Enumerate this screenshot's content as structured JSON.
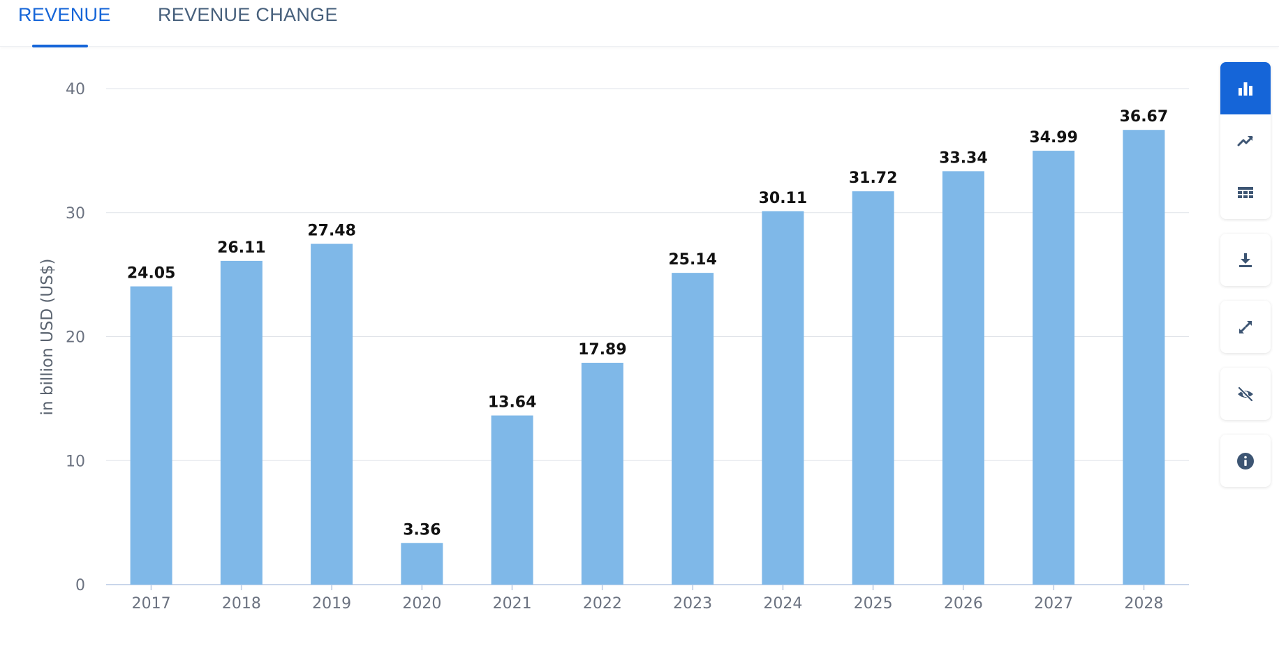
{
  "tabs": [
    {
      "label": "REVENUE",
      "active": true
    },
    {
      "label": "REVENUE CHANGE",
      "active": false
    }
  ],
  "toolbar": {
    "buttons": [
      {
        "icon": "bar-chart-icon",
        "active": true
      },
      {
        "icon": "line-chart-icon",
        "active": false
      },
      {
        "icon": "table-icon",
        "active": false
      },
      {
        "icon": "download-icon",
        "active": false
      },
      {
        "icon": "fullscreen-icon",
        "active": false
      },
      {
        "icon": "hide-icon",
        "active": false
      },
      {
        "icon": "info-icon",
        "active": false
      }
    ]
  },
  "colors": {
    "accent": "#1565d8",
    "bar": "#7fb8e8",
    "grid": "#dfe3e8",
    "tick": "#6b7280",
    "label": "#111111",
    "icon": "#3d5573"
  },
  "chart_data": {
    "type": "bar",
    "categories": [
      "2017",
      "2018",
      "2019",
      "2020",
      "2021",
      "2022",
      "2023",
      "2024",
      "2025",
      "2026",
      "2027",
      "2028"
    ],
    "values": [
      24.05,
      26.11,
      27.48,
      3.36,
      13.64,
      17.89,
      25.14,
      30.11,
      31.72,
      33.34,
      34.99,
      36.67
    ],
    "value_labels": [
      "24.05",
      "26.11",
      "27.48",
      "3.36",
      "13.64",
      "17.89",
      "25.14",
      "30.11",
      "31.72",
      "33.34",
      "34.99",
      "36.67"
    ],
    "title": "",
    "xlabel": "",
    "ylabel": "in billion USD (US$)",
    "ylim": [
      0,
      40
    ],
    "yticks": [
      "0",
      "10",
      "20",
      "30",
      "40"
    ],
    "grid": true,
    "legend": "none"
  }
}
